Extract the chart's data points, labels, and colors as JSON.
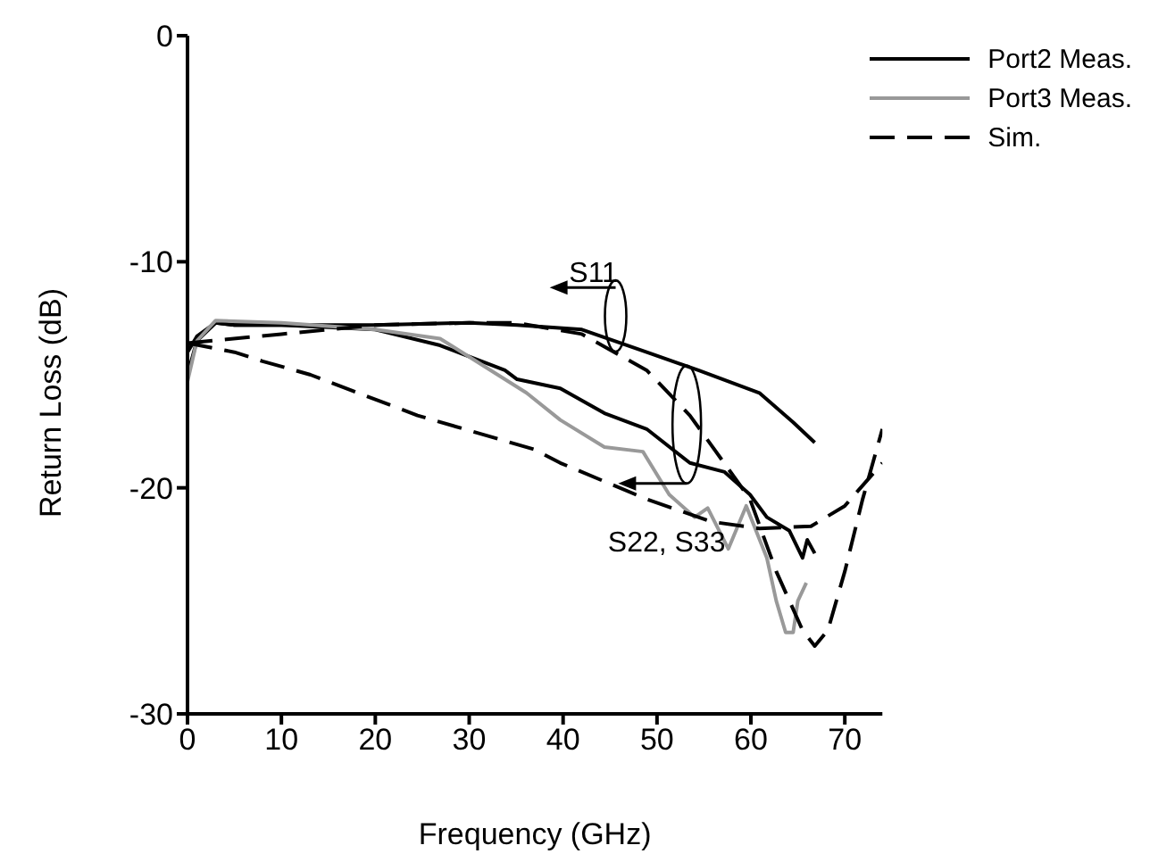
{
  "chart_data": {
    "type": "line",
    "xlabel": "Frequency  (GHz)",
    "ylabel": "Return Loss  (dB)",
    "xlim": [
      0,
      74
    ],
    "ylim": [
      -30,
      0
    ],
    "xticks": [
      0,
      10,
      20,
      30,
      40,
      50,
      60,
      70
    ],
    "yticks": [
      0,
      -10,
      -20,
      -30
    ],
    "grid": false,
    "legend": "top right",
    "marker": "none",
    "series": [
      {
        "name": "Port2 Meas.",
        "color": "#000000",
        "line_style": "solid",
        "x": [
          0,
          1,
          3,
          5,
          10,
          20,
          30,
          35.1,
          42,
          48.9,
          54.4,
          60.9,
          64.5,
          66.8
        ],
        "values": [
          -15,
          -13.5,
          -12.7,
          -12.8,
          -12.8,
          -12.8,
          -12.7,
          -12.8,
          -13.0,
          -14.0,
          -14.8,
          -15.8,
          -17.1,
          -18.0
        ]
      },
      {
        "color": "#000000",
        "line_style": "solid",
        "x": [
          0,
          1,
          3,
          5,
          10,
          20,
          26.9,
          33.8,
          35.1,
          39.7,
          44.4,
          48.9,
          53.5,
          57.2,
          59.9,
          61.7,
          64.1,
          65.5,
          66,
          66.8
        ],
        "values": [
          -14,
          -13.3,
          -12.7,
          -12.8,
          -12.8,
          -13.0,
          -13.7,
          -14.8,
          -15.2,
          -15.6,
          -16.7,
          -17.4,
          -18.9,
          -19.3,
          -20.3,
          -21.3,
          -21.9,
          -23.1,
          -22.3,
          -22.9
        ]
      },
      {
        "name": "Port3 Meas.",
        "color": "#999999",
        "line_style": "solid",
        "x": [
          0,
          1,
          3,
          10,
          20,
          26.9,
          36.1,
          39.7,
          44.4,
          48.5,
          51.3,
          54,
          55.4,
          57.6,
          59.5,
          61.7,
          62.7,
          63.7,
          64.5,
          65,
          65.9
        ],
        "values": [
          -15.3,
          -13.5,
          -12.6,
          -12.7,
          -13.0,
          -13.4,
          -15.8,
          -17.0,
          -18.2,
          -18.4,
          -20.3,
          -21.3,
          -20.9,
          -22.7,
          -20.8,
          -23.1,
          -25.0,
          -26.4,
          -26.4,
          -25.0,
          -24.2
        ]
      },
      {
        "name": "Sim.",
        "color": "#000000",
        "line_style": "dashed",
        "x": [
          0,
          10,
          20,
          30,
          35,
          42,
          48.9,
          53.5,
          56.8,
          59.9,
          62.7,
          65.5,
          66.8,
          68.2,
          70,
          71.9,
          74
        ],
        "values": [
          -13.6,
          -13.2,
          -12.8,
          -12.7,
          -12.7,
          -13.2,
          -14.8,
          -16.8,
          -18.7,
          -20.5,
          -23.7,
          -26.3,
          -27.0,
          -26.3,
          -23.7,
          -20.5,
          -17.4
        ]
      },
      {
        "color": "#000000",
        "line_style": "dashed",
        "x": [
          0,
          5,
          8,
          13.1,
          24.5,
          36.9,
          39.7,
          48.9,
          55.8,
          60.9,
          66.4,
          70,
          74
        ],
        "values": [
          -13.6,
          -14.0,
          -14.4,
          -15.0,
          -16.8,
          -18.3,
          -18.9,
          -20.5,
          -21.5,
          -21.8,
          -21.7,
          -20.8,
          -18.9
        ]
      }
    ],
    "annotations": [
      "S11",
      "S22, S33"
    ]
  }
}
